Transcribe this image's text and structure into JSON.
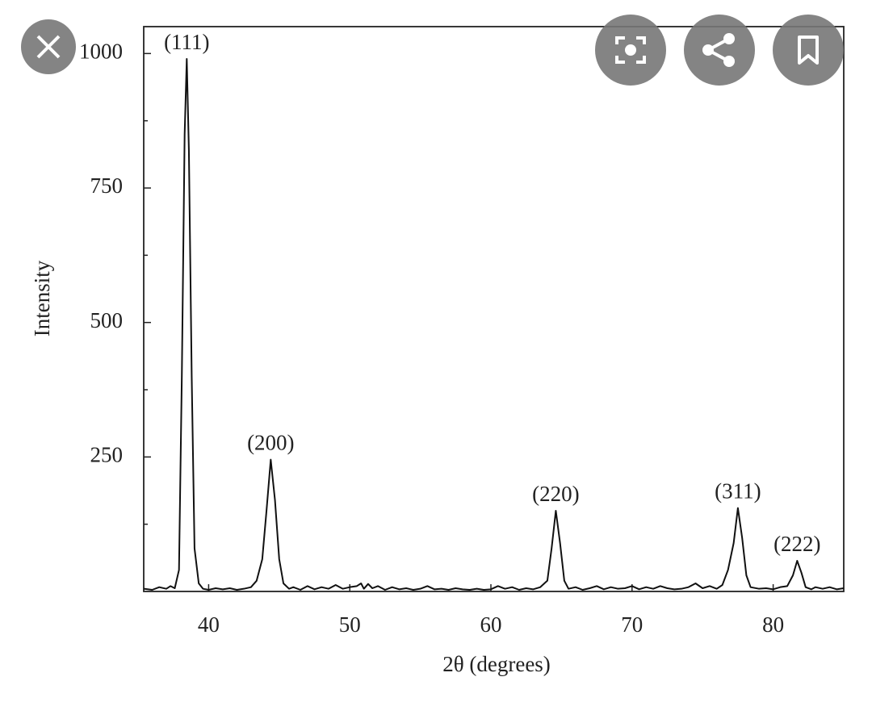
{
  "chart_data": {
    "type": "line",
    "x_label": "2θ (degrees)",
    "y_label": "Intensity",
    "xlim": [
      35.4,
      85
    ],
    "ylim": [
      0,
      1050
    ],
    "xticks": [
      40,
      50,
      60,
      70,
      80
    ],
    "yticks": [
      250,
      500,
      750,
      1000
    ],
    "yminorticks": [
      125,
      375,
      625,
      875
    ],
    "grid": false,
    "color": "#111111",
    "x": [
      35.4,
      36,
      36.5,
      37,
      37.3,
      37.6,
      37.9,
      38.1,
      38.3,
      38.45,
      38.6,
      38.8,
      39.0,
      39.3,
      39.6,
      40,
      40.5,
      41,
      41.5,
      42,
      42.5,
      43,
      43.4,
      43.8,
      44.1,
      44.4,
      44.7,
      45,
      45.3,
      45.7,
      46,
      46.5,
      47,
      47.5,
      48,
      48.5,
      49,
      49.5,
      50,
      50.5,
      50.8,
      51,
      51.3,
      51.6,
      52,
      52.5,
      53,
      53.5,
      54,
      54.5,
      55,
      55.5,
      56,
      56.5,
      57,
      57.5,
      58,
      58.5,
      59,
      59.5,
      60,
      60.5,
      61,
      61.5,
      62,
      62.5,
      63,
      63.5,
      64,
      64.3,
      64.6,
      64.9,
      65.2,
      65.5,
      66,
      66.5,
      67,
      67.5,
      68,
      68.5,
      69,
      69.5,
      70,
      70.5,
      71,
      71.5,
      72,
      72.5,
      73,
      73.5,
      74,
      74.5,
      75,
      75.5,
      76,
      76.4,
      76.8,
      77.2,
      77.5,
      77.8,
      78.1,
      78.4,
      79,
      79.5,
      80,
      80.5,
      81,
      81.4,
      81.7,
      82,
      82.3,
      82.7,
      83,
      83.5,
      84,
      84.5,
      85
    ],
    "series": [
      {
        "name": "Intensity",
        "color": "#111111",
        "values": [
          5,
          3,
          8,
          5,
          10,
          6,
          40,
          400,
          850,
          990,
          820,
          400,
          80,
          15,
          5,
          3,
          6,
          4,
          6,
          3,
          5,
          8,
          20,
          60,
          150,
          245,
          170,
          60,
          15,
          5,
          8,
          3,
          10,
          4,
          8,
          5,
          12,
          5,
          8,
          10,
          15,
          5,
          14,
          6,
          10,
          3,
          8,
          4,
          6,
          3,
          5,
          10,
          4,
          5,
          3,
          6,
          4,
          3,
          5,
          3,
          4,
          10,
          5,
          8,
          3,
          6,
          4,
          8,
          20,
          80,
          150,
          90,
          20,
          5,
          8,
          3,
          6,
          10,
          4,
          8,
          5,
          6,
          10,
          4,
          8,
          5,
          10,
          6,
          4,
          5,
          8,
          15,
          6,
          10,
          5,
          12,
          40,
          90,
          155,
          100,
          30,
          8,
          5,
          6,
          4,
          8,
          10,
          30,
          57,
          35,
          8,
          4,
          8,
          5,
          8,
          4,
          6
        ]
      }
    ],
    "annotations": [
      {
        "text": "(111)",
        "x": 38.45,
        "y": 990
      },
      {
        "text": "(200)",
        "x": 44.4,
        "y": 245
      },
      {
        "text": "(220)",
        "x": 64.6,
        "y": 150
      },
      {
        "text": "(311)",
        "x": 77.5,
        "y": 155
      },
      {
        "text": "(222)",
        "x": 81.7,
        "y": 57
      }
    ]
  }
}
